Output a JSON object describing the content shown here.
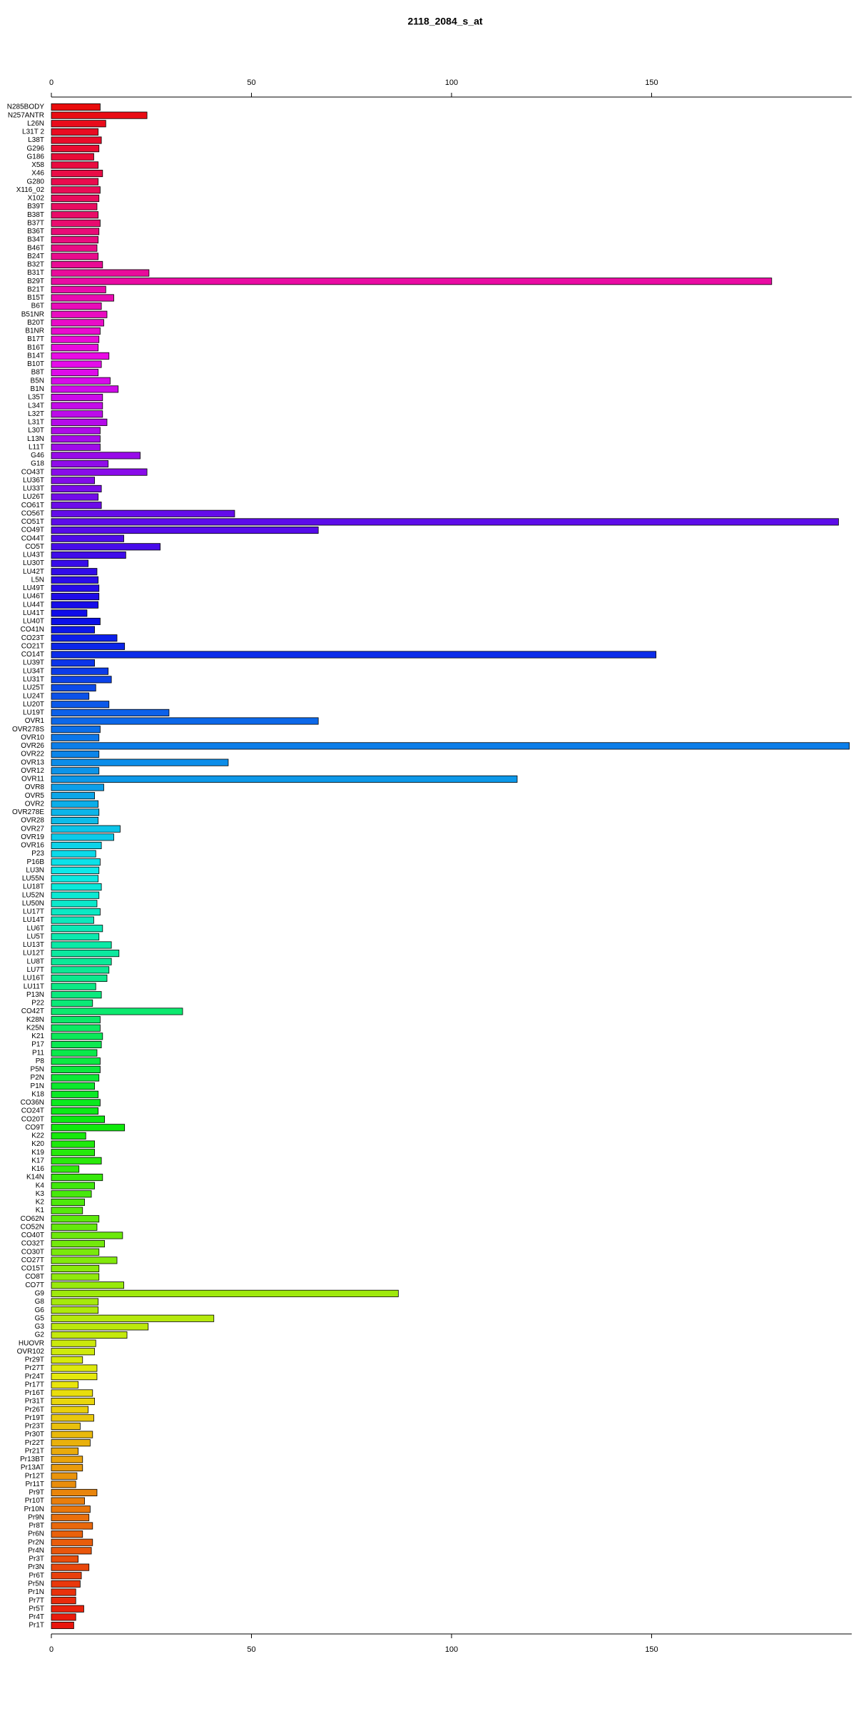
{
  "chart_data": {
    "type": "barh",
    "title": "2118_2084_s_at",
    "categories": [
      "N285BODY",
      "N257ANTR",
      "L26N",
      "L31T 2",
      "L38T",
      "G296",
      "G186",
      "X58",
      "X46",
      "G280",
      "X116_02",
      "X102",
      "B39T",
      "B38T",
      "B37T",
      "B36T",
      "B34T",
      "B46T",
      "B24T",
      "B32T",
      "B31T",
      "B29T",
      "B21T",
      "B15T",
      "B6T",
      "B51NR",
      "B20T",
      "B1NR",
      "B17T",
      "B16T",
      "B14T",
      "B10T",
      "B8T",
      "B5N",
      "B1N",
      "L35T",
      "L34T",
      "L32T",
      "L31T",
      "L30T",
      "L13N",
      "L11T",
      "G46",
      "G18",
      "CO43T",
      "LU36T",
      "LU33T",
      "LU26T",
      "CO61T",
      "CO56T",
      "CO51T",
      "CO49T",
      "CO44T",
      "CO5T",
      "LU43T",
      "LU30T",
      "LU42T",
      "L5N",
      "LU49T",
      "LU46T",
      "LU44T",
      "LU41T",
      "LU40T",
      "CO41N",
      "CO23T",
      "CO21T",
      "CO14T",
      "LU39T",
      "LU34T",
      "LU31T",
      "LU25T",
      "LU24T",
      "LU20T",
      "LU19T",
      "OVR1",
      "OVR278S",
      "OVR10",
      "OVR26",
      "OVR22",
      "OVR13",
      "OVR12",
      "OVR11",
      "OVR8",
      "OVR5",
      "OVR2",
      "OVR278E",
      "OVR28",
      "OVR27",
      "OVR19",
      "OVR16",
      "P23",
      "P16B",
      "LU3N",
      "LU55N",
      "LU18T",
      "LU52N",
      "LU50N",
      "LU17T",
      "LU14T",
      "LU6T",
      "LU5T",
      "LU13T",
      "LU12T",
      "LU8T",
      "LU7T",
      "LU16T",
      "LU11T",
      "P13N",
      "P22",
      "CO42T",
      "K28N",
      "K25N",
      "K21",
      "P17",
      "P11",
      "P8",
      "P5N",
      "P2N",
      "P1N",
      "K18",
      "CO36N",
      "CO24T",
      "CO20T",
      "CO9T",
      "K22",
      "K20",
      "K19",
      "K17",
      "K16",
      "K14N",
      "K4",
      "K3",
      "K2",
      "K1",
      "CO62N",
      "CO52N",
      "CO40T",
      "CO32T",
      "CO30T",
      "CO27T",
      "CO15T",
      "CO8T",
      "CO7T",
      "G9",
      "G8",
      "G6",
      "G5",
      "G3",
      "G2",
      "HUOVR",
      "OVR102",
      "Pr29T",
      "Pr27T",
      "Pr24T",
      "Pr17T",
      "Pr16T",
      "Pr31T",
      "Pr26T",
      "Pr19T",
      "Pr23T",
      "Pr30T",
      "Pr22T",
      "Pr21T",
      "Pr13BT",
      "Pr13AT",
      "Pr12T",
      "Pr11T",
      "Pr9T",
      "Pr10T",
      "Pr10N",
      "Pr9N",
      "Pr8T",
      "Pr6N",
      "Pr2N",
      "Pr4N",
      "Pr3T",
      "Pr3N",
      "Pr6T",
      "Pr5N",
      "Pr1N",
      "Pr7T",
      "Pr5T",
      "Pr4T",
      "Pr1T"
    ],
    "values": [
      12.2,
      23.9,
      13.6,
      11.7,
      12.5,
      11.9,
      10.6,
      11.7,
      12.8,
      11.7,
      12.2,
      11.9,
      11.4,
      11.7,
      12.2,
      11.9,
      11.7,
      11.4,
      11.7,
      12.8,
      24.4,
      180,
      13.6,
      15.6,
      12.5,
      13.9,
      13.1,
      12.2,
      11.9,
      11.7,
      14.4,
      12.5,
      11.7,
      14.7,
      16.7,
      12.8,
      12.8,
      12.8,
      13.9,
      12.2,
      12.2,
      12.2,
      22.2,
      14.2,
      23.9,
      10.8,
      12.5,
      11.7,
      12.5,
      45.8,
      196.7,
      66.7,
      18.1,
      27.2,
      18.6,
      9.2,
      11.4,
      11.7,
      11.9,
      11.9,
      11.7,
      8.9,
      12.2,
      10.8,
      16.4,
      18.3,
      151.1,
      10.8,
      14.2,
      15,
      11.1,
      9.4,
      14.4,
      29.4,
      66.7,
      12.2,
      11.9,
      199.4,
      11.9,
      44.2,
      11.9,
      116.4,
      13.1,
      10.8,
      11.7,
      11.9,
      11.7,
      17.2,
      15.6,
      12.5,
      11.1,
      12.2,
      11.9,
      11.7,
      12.5,
      11.9,
      11.4,
      12.2,
      10.6,
      12.8,
      11.9,
      15,
      16.9,
      15,
      14.4,
      13.9,
      11.1,
      12.5,
      10.3,
      32.8,
      12.2,
      12.2,
      12.8,
      12.5,
      11.4,
      12.2,
      12.2,
      11.9,
      10.8,
      11.7,
      12.2,
      11.7,
      13.3,
      18.3,
      8.6,
      10.8,
      10.8,
      12.5,
      6.9,
      12.8,
      10.8,
      10,
      8.3,
      7.8,
      11.9,
      11.4,
      17.8,
      13.3,
      11.9,
      16.4,
      11.9,
      11.9,
      18.1,
      86.7,
      11.7,
      11.7,
      40.6,
      24.2,
      18.9,
      11.1,
      10.8,
      7.8,
      11.4,
      11.4,
      6.7,
      10.3,
      10.8,
      9.2,
      10.6,
      7.2,
      10.3,
      9.7,
      6.7,
      7.8,
      7.8,
      6.4,
      6.1,
      11.4,
      8.3,
      9.7,
      9.4,
      10.3,
      7.8,
      10.3,
      10,
      6.7,
      9.4,
      7.5,
      7.2,
      6.1,
      6.1,
      8.1,
      6.1,
      5.6
    ],
    "colors": [
      "hsl(360,90%,48%)",
      "hsl(358,90%,48%)",
      "hsl(356,90%,48%)",
      "hsl(354,90%,48%)",
      "hsl(352,90%,48%)",
      "hsl(350,90%,48%)",
      "hsl(348,90%,48%)",
      "hsl(346,90%,48%)",
      "hsl(344,90%,48%)",
      "hsl(342,90%,48%)",
      "hsl(340,90%,48%)",
      "hsl(338,90%,48%)",
      "hsl(337,90%,48%)",
      "hsl(335,90%,48%)",
      "hsl(333,90%,48%)",
      "hsl(331,90%,48%)",
      "hsl(329,90%,48%)",
      "hsl(327,90%,48%)",
      "hsl(325,90%,48%)",
      "hsl(323,90%,48%)",
      "hsl(321,90%,48%)",
      "hsl(319,90%,48%)",
      "hsl(317,90%,48%)",
      "hsl(315,90%,48%)",
      "hsl(313,90%,48%)",
      "hsl(311,90%,48%)",
      "hsl(309,90%,48%)",
      "hsl(307,90%,48%)",
      "hsl(305,90%,48%)",
      "hsl(303,90%,48%)",
      "hsl(301,90%,48%)",
      "hsl(299,90%,48%)",
      "hsl(297,90%,48%)",
      "hsl(295,90%,48%)",
      "hsl(293,90%,48%)",
      "hsl(292,90%,48%)",
      "hsl(290,90%,48%)",
      "hsl(288,90%,48%)",
      "hsl(286,90%,48%)",
      "hsl(284,90%,48%)",
      "hsl(282,90%,48%)",
      "hsl(280,90%,48%)",
      "hsl(278,90%,48%)",
      "hsl(276,90%,48%)",
      "hsl(274,90%,48%)",
      "hsl(272,90%,48%)",
      "hsl(270,90%,48%)",
      "hsl(268,90%,48%)",
      "hsl(266,90%,48%)",
      "hsl(264,90%,48%)",
      "hsl(262,90%,48%)",
      "hsl(260,90%,48%)",
      "hsl(258,90%,48%)",
      "hsl(256,90%,48%)",
      "hsl(254,90%,48%)",
      "hsl(252,90%,48%)",
      "hsl(250,90%,48%)",
      "hsl(248,90%,48%)",
      "hsl(247,90%,48%)",
      "hsl(245,90%,48%)",
      "hsl(243,90%,48%)",
      "hsl(241,90%,48%)",
      "hsl(239,90%,48%)",
      "hsl(237,90%,48%)",
      "hsl(235,90%,48%)",
      "hsl(233,90%,48%)",
      "hsl(231,90%,48%)",
      "hsl(229,90%,48%)",
      "hsl(227,90%,48%)",
      "hsl(225,90%,48%)",
      "hsl(223,90%,48%)",
      "hsl(221,90%,48%)",
      "hsl(219,90%,48%)",
      "hsl(217,90%,48%)",
      "hsl(215,90%,48%)",
      "hsl(213,90%,48%)",
      "hsl(211,90%,48%)",
      "hsl(209,90%,48%)",
      "hsl(207,90%,48%)",
      "hsl(205,90%,48%)",
      "hsl(203,90%,48%)",
      "hsl(202,90%,48%)",
      "hsl(200,90%,48%)",
      "hsl(198,90%,48%)",
      "hsl(196,90%,48%)",
      "hsl(194,90%,48%)",
      "hsl(192,90%,48%)",
      "hsl(190,90%,48%)",
      "hsl(188,90%,48%)",
      "hsl(186,90%,48%)",
      "hsl(184,90%,48%)",
      "hsl(182,90%,48%)",
      "hsl(180,90%,48%)",
      "hsl(178,90%,48%)",
      "hsl(176,90%,48%)",
      "hsl(174,90%,48%)",
      "hsl(172,90%,48%)",
      "hsl(170,90%,48%)",
      "hsl(168,90%,48%)",
      "hsl(166,90%,48%)",
      "hsl(164,90%,48%)",
      "hsl(162,90%,48%)",
      "hsl(160,90%,48%)",
      "hsl(158,90%,48%)",
      "hsl(157,90%,48%)",
      "hsl(155,90%,48%)",
      "hsl(153,90%,48%)",
      "hsl(151,90%,48%)",
      "hsl(149,90%,48%)",
      "hsl(147,90%,48%)",
      "hsl(145,90%,48%)",
      "hsl(143,90%,48%)",
      "hsl(141,90%,48%)",
      "hsl(139,90%,48%)",
      "hsl(137,90%,48%)",
      "hsl(135,90%,48%)",
      "hsl(133,90%,48%)",
      "hsl(131,90%,48%)",
      "hsl(129,90%,48%)",
      "hsl(127,90%,48%)",
      "hsl(125,90%,48%)",
      "hsl(123,90%,48%)",
      "hsl(121,90%,48%)",
      "hsl(119,90%,48%)",
      "hsl(117,90%,48%)",
      "hsl(115,90%,48%)",
      "hsl(113,90%,48%)",
      "hsl(112,90%,48%)",
      "hsl(110,90%,48%)",
      "hsl(108,90%,48%)",
      "hsl(106,90%,48%)",
      "hsl(104,90%,48%)",
      "hsl(102,90%,48%)",
      "hsl(100,90%,48%)",
      "hsl(98,90%,48%)",
      "hsl(96,90%,48%)",
      "hsl(94,90%,48%)",
      "hsl(92,90%,48%)",
      "hsl(90,90%,48%)",
      "hsl(88,90%,48%)",
      "hsl(86,90%,48%)",
      "hsl(84,90%,48%)",
      "hsl(82,90%,48%)",
      "hsl(80,90%,48%)",
      "hsl(78,90%,48%)",
      "hsl(76,90%,48%)",
      "hsl(74,90%,48%)",
      "hsl(72,90%,48%)",
      "hsl(70,90%,48%)",
      "hsl(68,90%,48%)",
      "hsl(67,90%,48%)",
      "hsl(65,90%,48%)",
      "hsl(63,90%,48%)",
      "hsl(61,90%,48%)",
      "hsl(59,90%,48%)",
      "hsl(57,90%,48%)",
      "hsl(55,90%,48%)",
      "hsl(53,90%,48%)",
      "hsl(51,90%,48%)",
      "hsl(49,90%,48%)",
      "hsl(47,90%,48%)",
      "hsl(45,90%,48%)",
      "hsl(43,90%,48%)",
      "hsl(41,90%,48%)",
      "hsl(39,90%,48%)",
      "hsl(37,90%,48%)",
      "hsl(35,90%,48%)",
      "hsl(33,90%,48%)",
      "hsl(31,90%,48%)",
      "hsl(29,90%,48%)",
      "hsl(27,90%,48%)",
      "hsl(25,90%,48%)",
      "hsl(23,90%,48%)",
      "hsl(22,90%,48%)",
      "hsl(20,90%,48%)",
      "hsl(18,90%,48%)",
      "hsl(16,90%,48%)",
      "hsl(14,90%,48%)",
      "hsl(12,90%,48%)",
      "hsl(10,90%,48%)",
      "hsl(8,90%,48%)",
      "hsl(6,90%,48%)",
      "hsl(4,90%,48%)",
      "hsl(2,90%,48%)"
    ],
    "xlim": [
      0,
      200
    ],
    "xticks": [
      0,
      50,
      100,
      150
    ],
    "grid": false
  }
}
